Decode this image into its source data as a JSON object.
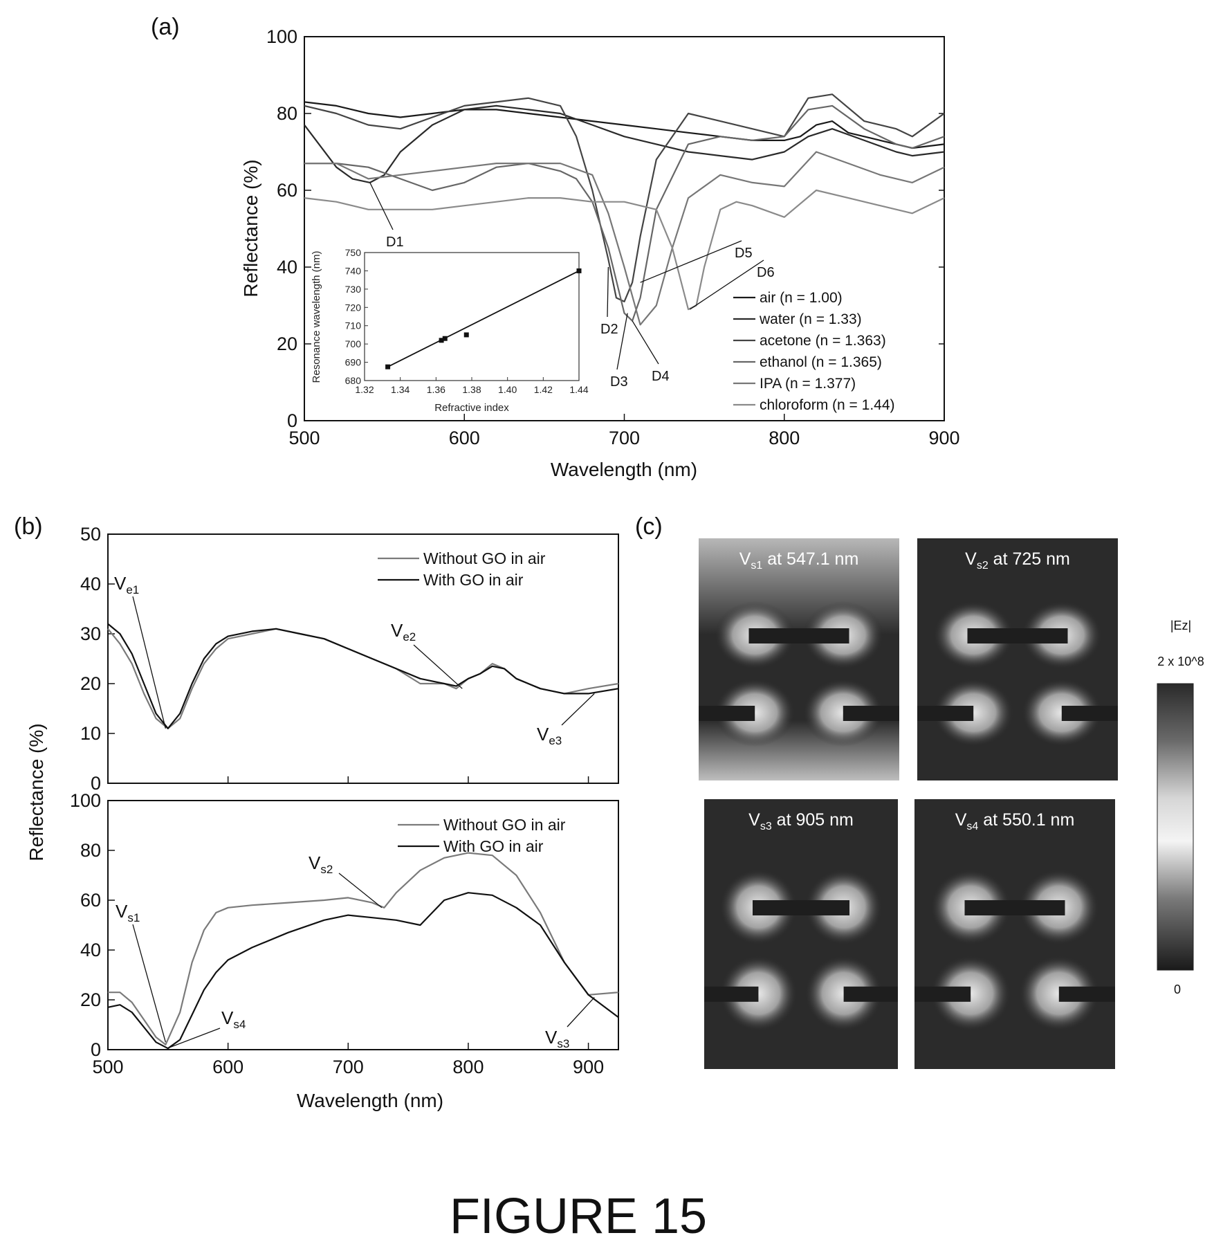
{
  "figure_title": "FIGURE 15",
  "panels": {
    "a": "(a)",
    "b": "(b)",
    "c": "(c)"
  },
  "chart_data": [
    {
      "id": "a",
      "type": "line",
      "xlabel": "Wavelength (nm)",
      "ylabel": "Reflectance (%)",
      "xlim": [
        500,
        900
      ],
      "ylim": [
        0,
        100
      ],
      "xticks": [
        500,
        600,
        700,
        800,
        900
      ],
      "yticks": [
        0,
        20,
        40,
        60,
        80,
        100
      ],
      "legend_position": "bottom-right",
      "series": [
        {
          "name": "air (n = 1.00)",
          "color": "#1a1a1a",
          "x": [
            500,
            520,
            540,
            560,
            580,
            600,
            620,
            640,
            660,
            680,
            700,
            720,
            740,
            760,
            780,
            800,
            810,
            820,
            830,
            840,
            860,
            880,
            900
          ],
          "y": [
            83,
            82,
            80,
            79,
            80,
            81,
            81,
            80,
            79,
            78,
            77,
            76,
            75,
            74,
            73,
            73,
            74,
            77,
            78,
            75,
            73,
            71,
            72
          ]
        },
        {
          "name": "water (n = 1.33)",
          "color": "#2a2a2a",
          "x": [
            500,
            520,
            530,
            541,
            550,
            560,
            580,
            600,
            620,
            640,
            660,
            680,
            700,
            720,
            740,
            760,
            780,
            800,
            815,
            830,
            850,
            870,
            880,
            900
          ],
          "y": [
            77,
            66,
            63,
            62,
            64,
            70,
            77,
            81,
            82,
            81,
            80,
            77,
            74,
            72,
            70,
            69,
            68,
            70,
            74,
            76,
            73,
            70,
            69,
            70
          ]
        },
        {
          "name": "acetone (n = 1.363)",
          "color": "#444444",
          "x": [
            500,
            520,
            540,
            560,
            580,
            600,
            620,
            640,
            660,
            670,
            680,
            690,
            695,
            700,
            705,
            710,
            720,
            740,
            760,
            780,
            800,
            815,
            830,
            850,
            870,
            880,
            900
          ],
          "y": [
            82,
            80,
            77,
            76,
            79,
            82,
            83,
            84,
            82,
            74,
            60,
            42,
            32,
            31,
            36,
            48,
            68,
            80,
            78,
            76,
            74,
            84,
            85,
            78,
            76,
            74,
            80
          ]
        },
        {
          "name": "ethanol (n = 1.365)",
          "color": "#666666",
          "x": [
            500,
            520,
            540,
            560,
            580,
            600,
            620,
            640,
            660,
            670,
            680,
            690,
            700,
            705,
            710,
            720,
            740,
            760,
            780,
            800,
            815,
            830,
            850,
            870,
            880,
            900
          ],
          "y": [
            67,
            67,
            66,
            63,
            60,
            62,
            66,
            67,
            65,
            63,
            57,
            45,
            28,
            26,
            32,
            55,
            72,
            74,
            73,
            74,
            81,
            82,
            76,
            72,
            71,
            74
          ]
        },
        {
          "name": "IPA (n = 1.377)",
          "color": "#777777",
          "x": [
            500,
            520,
            540,
            560,
            580,
            600,
            620,
            640,
            660,
            680,
            690,
            700,
            710,
            720,
            730,
            740,
            760,
            780,
            800,
            820,
            840,
            860,
            880,
            900
          ],
          "y": [
            67,
            67,
            63,
            64,
            65,
            66,
            67,
            67,
            67,
            64,
            54,
            40,
            25,
            30,
            45,
            58,
            64,
            62,
            61,
            70,
            67,
            64,
            62,
            66
          ]
        },
        {
          "name": "chloroform (n = 1.44)",
          "color": "#8a8a8a",
          "x": [
            500,
            520,
            540,
            560,
            580,
            600,
            620,
            640,
            660,
            680,
            700,
            720,
            730,
            740,
            745,
            750,
            760,
            770,
            780,
            800,
            820,
            840,
            860,
            880,
            900
          ],
          "y": [
            58,
            57,
            55,
            55,
            55,
            56,
            57,
            58,
            58,
            57,
            57,
            55,
            45,
            29,
            30,
            40,
            55,
            57,
            56,
            53,
            60,
            58,
            56,
            54,
            58
          ]
        }
      ],
      "annotations": [
        {
          "text": "D1",
          "x": 541,
          "y": 62
        },
        {
          "text": "D2",
          "x": 690,
          "y": 40
        },
        {
          "text": "D3",
          "x": 702,
          "y": 28
        },
        {
          "text": "D4",
          "x": 705,
          "y": 26
        },
        {
          "text": "D5",
          "x": 710,
          "y": 36
        },
        {
          "text": "D6",
          "x": 741,
          "y": 29
        }
      ],
      "inset": {
        "type": "scatter",
        "xlabel": "Refractive index",
        "ylabel": "Resonance wavelength (nm)",
        "xlim": [
          1.32,
          1.44
        ],
        "ylim": [
          680,
          750
        ],
        "xticks": [
          "1.32",
          "1.34",
          "1.36",
          "1.38",
          "1.40",
          "1.42",
          "1.44"
        ],
        "yticks": [
          "680",
          "690",
          "700",
          "710",
          "720",
          "730",
          "740",
          "750"
        ],
        "points": [
          [
            1.333,
            687.5
          ],
          [
            1.363,
            702
          ],
          [
            1.365,
            703
          ],
          [
            1.377,
            705
          ],
          [
            1.44,
            740
          ]
        ],
        "fit_line": [
          [
            1.333,
            687.5
          ],
          [
            1.44,
            740
          ]
        ]
      }
    },
    {
      "id": "b-top",
      "type": "line",
      "ylabel": "Reflectance (%)",
      "xlim": [
        500,
        925
      ],
      "ylim": [
        0,
        50
      ],
      "yticks": [
        0,
        10,
        20,
        30,
        40,
        50
      ],
      "legend_position": "top-right",
      "series": [
        {
          "name": "Without GO in air",
          "color": "#7a7a7a",
          "x": [
            500,
            510,
            520,
            530,
            540,
            550,
            560,
            570,
            580,
            590,
            600,
            620,
            640,
            660,
            680,
            700,
            720,
            740,
            760,
            780,
            790,
            800,
            810,
            820,
            830,
            840,
            860,
            880,
            900,
            925
          ],
          "y": [
            31,
            28,
            24,
            18,
            13,
            11,
            13,
            19,
            24,
            27,
            29,
            30,
            31,
            30,
            29,
            27,
            25,
            23,
            20,
            20,
            19,
            21,
            22,
            24,
            23,
            21,
            19,
            18,
            19,
            20
          ]
        },
        {
          "name": "With GO in air",
          "color": "#111111",
          "x": [
            500,
            510,
            520,
            530,
            540,
            550,
            560,
            570,
            580,
            590,
            600,
            620,
            640,
            660,
            680,
            700,
            720,
            740,
            760,
            780,
            790,
            800,
            810,
            820,
            830,
            840,
            860,
            880,
            900,
            925
          ],
          "y": [
            32,
            30,
            26,
            20,
            14,
            11,
            14,
            20,
            25,
            28,
            29.5,
            30.5,
            31,
            30,
            29,
            27,
            25,
            23,
            21,
            20,
            19.5,
            21,
            22,
            23.5,
            23,
            21,
            19,
            18,
            18,
            19
          ]
        }
      ],
      "annotations": [
        {
          "text": "V",
          "sub": "e1",
          "x": 548,
          "y": 11
        },
        {
          "text": "V",
          "sub": "e2",
          "x": 795,
          "y": 19
        },
        {
          "text": "V",
          "sub": "e3",
          "x": 905,
          "y": 18
        }
      ]
    },
    {
      "id": "b-bottom",
      "type": "line",
      "xlabel": "Wavelength (nm)",
      "ylabel": "Reflectance (%)",
      "xlim": [
        500,
        925
      ],
      "ylim": [
        0,
        100
      ],
      "xticks": [
        500,
        600,
        700,
        800,
        900
      ],
      "yticks": [
        0,
        20,
        40,
        60,
        80,
        100
      ],
      "legend_position": "top-right",
      "series": [
        {
          "name": "Without GO in air",
          "color": "#7a7a7a",
          "x": [
            500,
            510,
            520,
            530,
            540,
            548,
            560,
            570,
            580,
            590,
            600,
            620,
            650,
            680,
            700,
            720,
            730,
            740,
            760,
            780,
            800,
            820,
            840,
            860,
            880,
            900,
            925
          ],
          "y": [
            23,
            23,
            19,
            12,
            5,
            2,
            15,
            35,
            48,
            55,
            57,
            58,
            59,
            60,
            61,
            59,
            57,
            63,
            72,
            77,
            79,
            78,
            70,
            55,
            35,
            22,
            23
          ]
        },
        {
          "name": "With GO in air",
          "color": "#111111",
          "x": [
            500,
            510,
            520,
            530,
            540,
            550,
            560,
            570,
            580,
            590,
            600,
            620,
            650,
            680,
            700,
            720,
            740,
            760,
            770,
            780,
            800,
            820,
            840,
            860,
            880,
            900,
            925
          ],
          "y": [
            17,
            18,
            15,
            9,
            3,
            0.5,
            4,
            14,
            24,
            31,
            36,
            41,
            47,
            52,
            54,
            53,
            52,
            50,
            55,
            60,
            63,
            62,
            57,
            50,
            35,
            22,
            13
          ]
        }
      ],
      "annotations": [
        {
          "text": "V",
          "sub": "s1",
          "x": 548,
          "y": 3
        },
        {
          "text": "V",
          "sub": "s2",
          "x": 728,
          "y": 57
        },
        {
          "text": "V",
          "sub": "s3",
          "x": 905,
          "y": 21
        },
        {
          "text": "V",
          "sub": "s4",
          "x": 552,
          "y": 1
        }
      ]
    }
  ],
  "field_maps": {
    "maps": [
      {
        "prefix": "V",
        "sub": "s1",
        "suffix": " at 547.1 nm"
      },
      {
        "prefix": "V",
        "sub": "s2",
        "suffix": " at 725 nm"
      },
      {
        "prefix": "V",
        "sub": "s3",
        "suffix": " at 905 nm"
      },
      {
        "prefix": "V",
        "sub": "s4",
        "suffix": " at 550.1 nm"
      }
    ],
    "colorbar": {
      "title": "|Ez|",
      "max": "2 x 10^8",
      "min": "0"
    }
  }
}
